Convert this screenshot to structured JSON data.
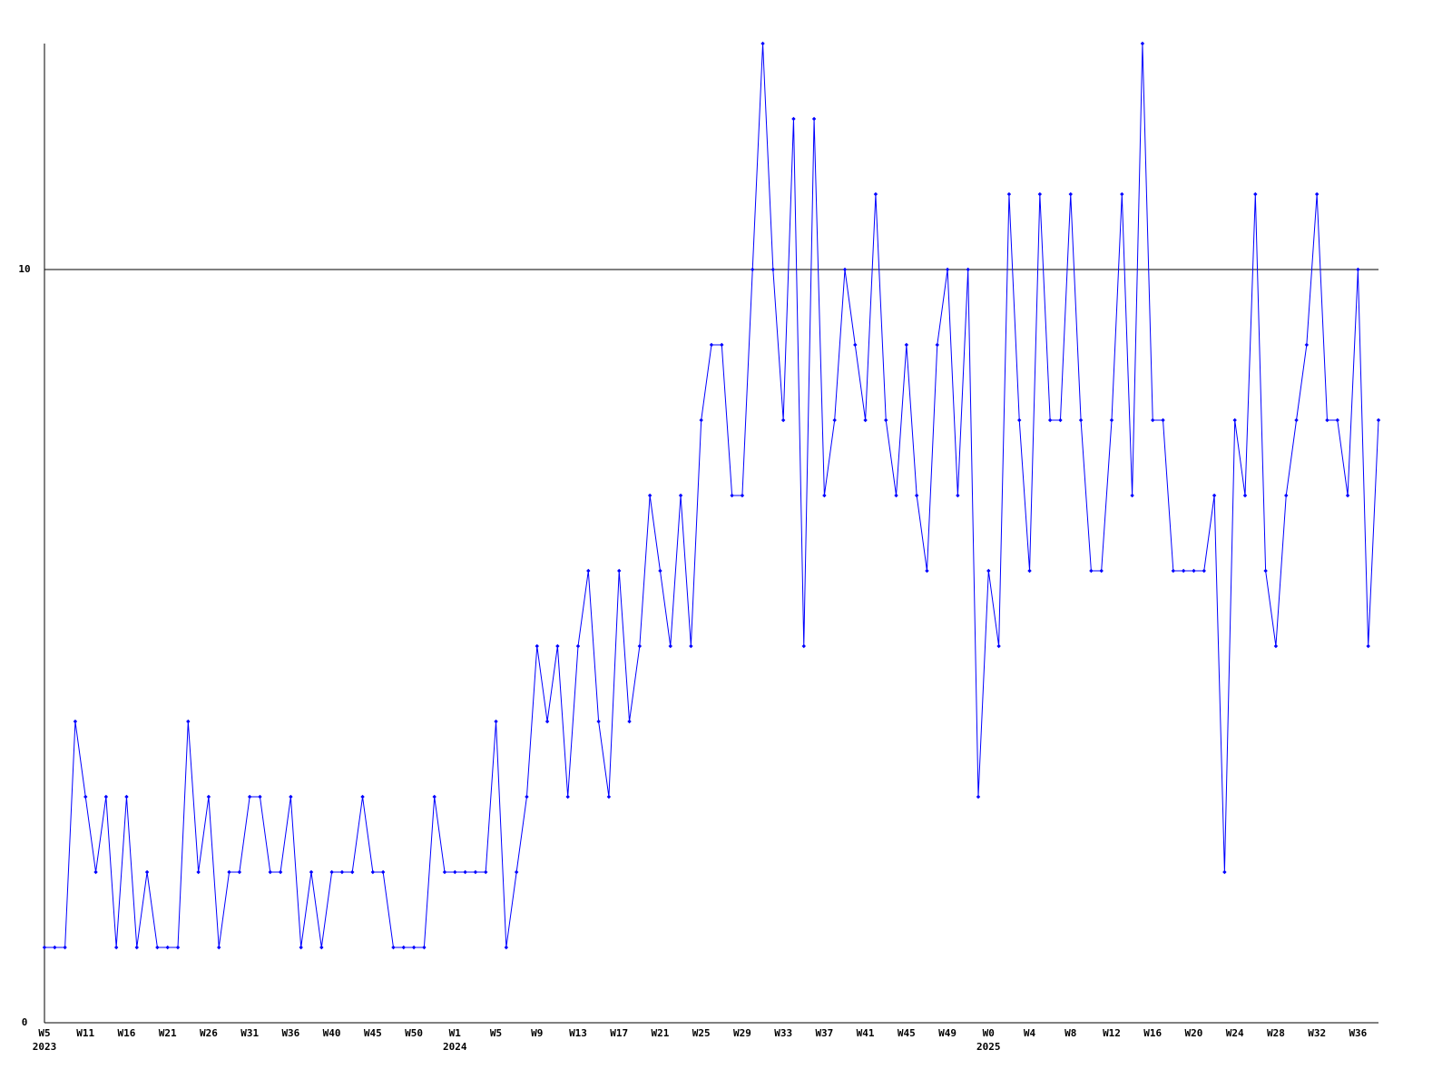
{
  "chart_data": {
    "type": "line",
    "categories": [
      "W5",
      null,
      null,
      null,
      "W11",
      null,
      null,
      null,
      "W16",
      null,
      null,
      null,
      "W21",
      null,
      null,
      null,
      "W26",
      null,
      null,
      null,
      "W31",
      null,
      null,
      null,
      "W36",
      null,
      null,
      null,
      "W40",
      null,
      null,
      null,
      "W45",
      null,
      null,
      null,
      "W50",
      null,
      null,
      null,
      "W1",
      null,
      null,
      null,
      "W5",
      null,
      null,
      null,
      "W9",
      null,
      null,
      null,
      "W13",
      null,
      null,
      null,
      "W17",
      null,
      null,
      null,
      "W21",
      null,
      null,
      null,
      "W25",
      null,
      null,
      null,
      "W29",
      null,
      null,
      null,
      "W33",
      null,
      null,
      null,
      "W37",
      null,
      null,
      null,
      "W41",
      null,
      null,
      null,
      "W45",
      null,
      null,
      null,
      "W49",
      null,
      null,
      null,
      "W0",
      null,
      null,
      null,
      "W4",
      null,
      null,
      null,
      "W8",
      null,
      null,
      null,
      "W12",
      null,
      null,
      null,
      "W16",
      null,
      null,
      null,
      "W20",
      null,
      null,
      null,
      "W24",
      null,
      null,
      null,
      "W28",
      null,
      null,
      null,
      "W32",
      null,
      null,
      null,
      "W36",
      null,
      null
    ],
    "years": [
      "2023",
      null,
      null,
      null,
      null,
      null,
      null,
      null,
      null,
      null,
      null,
      null,
      null,
      null,
      null,
      null,
      null,
      null,
      null,
      null,
      null,
      null,
      null,
      null,
      null,
      null,
      null,
      null,
      null,
      null,
      null,
      null,
      null,
      null,
      null,
      null,
      null,
      null,
      null,
      null,
      "2024",
      null,
      null,
      null,
      null,
      null,
      null,
      null,
      null,
      null,
      null,
      null,
      null,
      null,
      null,
      null,
      null,
      null,
      null,
      null,
      null,
      null,
      null,
      null,
      null,
      null,
      null,
      null,
      null,
      null,
      null,
      null,
      null,
      null,
      null,
      null,
      null,
      null,
      null,
      null,
      null,
      null,
      null,
      null,
      null,
      null,
      null,
      null,
      null,
      null,
      null,
      null,
      "2025",
      null,
      null,
      null,
      null,
      null,
      null,
      null,
      null,
      null,
      null,
      null,
      null,
      null,
      null,
      null,
      null,
      null,
      null,
      null,
      null,
      null,
      null,
      null,
      null,
      null,
      null,
      null,
      null,
      null,
      null,
      null,
      null,
      null,
      null,
      null,
      null,
      null,
      null
    ],
    "series": [
      {
        "color": "#0000ff",
        "values": [
          1,
          1,
          1,
          4,
          3,
          2,
          3,
          1,
          3,
          1,
          2,
          1,
          1,
          1,
          4,
          2,
          3,
          1,
          2,
          2,
          3,
          3,
          2,
          2,
          3,
          1,
          2,
          1,
          2,
          2,
          2,
          3,
          2,
          2,
          1,
          1,
          1,
          1,
          3,
          2,
          2,
          2,
          2,
          2,
          4,
          1,
          2,
          3,
          5,
          4,
          5,
          3,
          5,
          6,
          4,
          3,
          6,
          4,
          5,
          7,
          6,
          5,
          7,
          5,
          8,
          9,
          9,
          7,
          7,
          10,
          13,
          10,
          8,
          12,
          5,
          12,
          7,
          8,
          10,
          9,
          8,
          11,
          8,
          7,
          9,
          7,
          6,
          9,
          10,
          7,
          10,
          3,
          6,
          5,
          11,
          8,
          6,
          11,
          8,
          8,
          11,
          8,
          6,
          6,
          8,
          11,
          7,
          13,
          8,
          8,
          6,
          6,
          6,
          6,
          7,
          2,
          8,
          7,
          11,
          6,
          5,
          7,
          8,
          9,
          11,
          8,
          8,
          7,
          10,
          5,
          8
        ]
      }
    ],
    "ylim": [
      0,
      13
    ],
    "yticks": [
      0,
      10
    ],
    "grid": true
  }
}
